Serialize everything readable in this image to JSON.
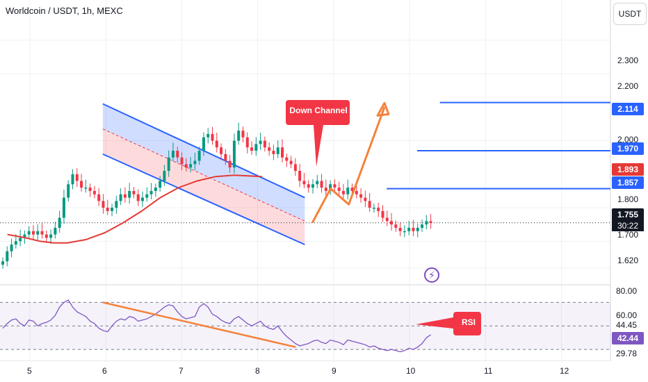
{
  "header": {
    "title": "Worldcoin / USDT, 1h, MEXC",
    "currency_button": "USDT"
  },
  "price_axis": [
    "2.300",
    "2.200",
    "2.000",
    "1.800",
    "1.700",
    "1.620"
  ],
  "rsi_axis": [
    "80.00",
    "60.00",
    "44.45",
    "29.78"
  ],
  "time_axis": [
    "5",
    "6",
    "7",
    "8",
    "9",
    "10",
    "11",
    "12"
  ],
  "tags": {
    "target3": "2.114",
    "target2": "1.970",
    "ma_value": "1.893",
    "target1": "1.857",
    "last_price": "1.755",
    "countdown": "30:22",
    "rsi_value": "42.44"
  },
  "annotations": {
    "down_channel": "Down Channel",
    "rsi": "RSI"
  },
  "colors": {
    "up": "#089981",
    "down": "#f23645",
    "channel_line": "#2962ff",
    "ma": "#e53935",
    "projection": "#f5813a",
    "rsi_line": "#7e57c2"
  },
  "chart_data": {
    "type": "candlestick",
    "title": "Worldcoin / USDT, 1h, MEXC",
    "x_ticks": [
      "5",
      "6",
      "7",
      "8",
      "9",
      "10",
      "11",
      "12"
    ],
    "price_range": [
      1.57,
      2.42
    ],
    "close_series": [
      1.64,
      1.67,
      1.69,
      1.7,
      1.71,
      1.72,
      1.73,
      1.72,
      1.73,
      1.72,
      1.71,
      1.72,
      1.74,
      1.77,
      1.83,
      1.87,
      1.9,
      1.88,
      1.86,
      1.86,
      1.85,
      1.84,
      1.82,
      1.8,
      1.79,
      1.8,
      1.82,
      1.84,
      1.83,
      1.85,
      1.84,
      1.82,
      1.83,
      1.84,
      1.85,
      1.86,
      1.88,
      1.91,
      1.95,
      1.97,
      1.95,
      1.93,
      1.92,
      1.93,
      1.94,
      1.97,
      2.01,
      2.02,
      2.0,
      1.98,
      1.96,
      1.94,
      1.92,
      2.0,
      2.03,
      2.01,
      1.98,
      1.97,
      1.99,
      2.0,
      1.98,
      1.97,
      1.96,
      1.98,
      1.95,
      1.94,
      1.93,
      1.91,
      1.88,
      1.87,
      1.86,
      1.87,
      1.88,
      1.86,
      1.85,
      1.87,
      1.86,
      1.85,
      1.84,
      1.86,
      1.85,
      1.84,
      1.83,
      1.82,
      1.8,
      1.8,
      1.79,
      1.77,
      1.76,
      1.75,
      1.74,
      1.73,
      1.73,
      1.74,
      1.73,
      1.74,
      1.75,
      1.76,
      1.755
    ],
    "moving_average": {
      "label": "",
      "points": [
        [
          1,
          1.72
        ],
        [
          5,
          1.71
        ],
        [
          8,
          1.7
        ],
        [
          11,
          1.695
        ],
        [
          14,
          1.695
        ],
        [
          18,
          1.705
        ],
        [
          22,
          1.725
        ],
        [
          26,
          1.755
        ],
        [
          30,
          1.79
        ],
        [
          34,
          1.83
        ],
        [
          38,
          1.86
        ],
        [
          42,
          1.88
        ],
        [
          46,
          1.893
        ],
        [
          50,
          1.897
        ],
        [
          53,
          1.895
        ],
        [
          56,
          1.893
        ]
      ]
    },
    "down_channel": {
      "upper": [
        [
          1.96,
          2.11
        ],
        [
          4.62,
          1.83
        ]
      ],
      "lower": [
        [
          1.96,
          1.96
        ],
        [
          4.62,
          1.69
        ]
      ]
    },
    "resistance_levels": [
      2.114,
      1.97,
      1.857
    ],
    "projection_path": [
      [
        4.72,
        1.755
      ],
      [
        4.96,
        1.857
      ],
      [
        5.2,
        1.81
      ],
      [
        5.67,
        2.1
      ]
    ],
    "rsi": {
      "range": [
        20,
        85
      ],
      "levels": [
        70,
        50,
        30
      ],
      "trendline": [
        [
          1.96,
          70
        ],
        [
          4.5,
          32
        ]
      ],
      "last": 42.44,
      "values": [
        48,
        52,
        55,
        56,
        52,
        50,
        55,
        54,
        50,
        52,
        53,
        55,
        59,
        66,
        70,
        72,
        66,
        62,
        60,
        58,
        54,
        52,
        48,
        46,
        45,
        50,
        54,
        56,
        55,
        58,
        57,
        54,
        55,
        56,
        58,
        60,
        63,
        66,
        68,
        67,
        62,
        58,
        56,
        57,
        58,
        66,
        69,
        66,
        60,
        58,
        55,
        53,
        52,
        56,
        58,
        55,
        52,
        50,
        52,
        54,
        50,
        48,
        47,
        50,
        45,
        41,
        38,
        35,
        33,
        34,
        35,
        37,
        38,
        36,
        35,
        38,
        37,
        36,
        34,
        38,
        37,
        36,
        35,
        34,
        32,
        33,
        31,
        30,
        29,
        30,
        29,
        28,
        29,
        31,
        30,
        32,
        35,
        40,
        42.44
      ]
    }
  }
}
